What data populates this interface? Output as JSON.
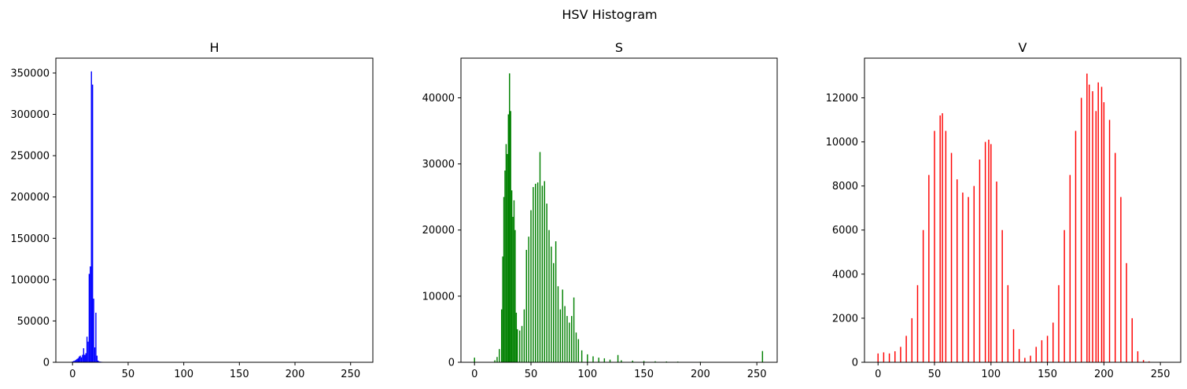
{
  "figure": {
    "suptitle": "HSV Histogram"
  },
  "chart_data": [
    {
      "type": "bar",
      "title": "H",
      "color": "#0000ff",
      "xlim": [
        -15,
        270
      ],
      "ylim": [
        0,
        368000
      ],
      "xticks": [
        0,
        50,
        100,
        150,
        200,
        250
      ],
      "yticks": [
        0,
        50000,
        100000,
        150000,
        200000,
        250000,
        300000,
        350000
      ],
      "x": [
        0,
        1,
        2,
        3,
        4,
        5,
        6,
        7,
        8,
        9,
        10,
        11,
        12,
        13,
        14,
        15,
        16,
        17,
        18,
        19,
        20,
        21,
        22,
        23,
        24,
        25,
        26,
        27,
        28,
        29,
        30,
        31,
        32,
        33,
        34,
        35,
        36,
        37,
        38,
        39,
        40
      ],
      "values": [
        1000,
        1500,
        2000,
        3000,
        4000,
        5000,
        7000,
        8000,
        6000,
        9000,
        17000,
        9000,
        11000,
        31000,
        25000,
        107000,
        116000,
        352000,
        336000,
        77000,
        18000,
        60000,
        8000,
        2000,
        1000,
        800,
        600,
        500,
        400,
        300,
        250,
        200,
        150,
        150,
        100,
        100,
        100,
        80,
        80,
        60,
        60
      ]
    },
    {
      "type": "bar",
      "title": "S",
      "color": "#008000",
      "xlim": [
        -12,
        268
      ],
      "ylim": [
        0,
        46000
      ],
      "xticks": [
        0,
        50,
        100,
        150,
        200,
        250
      ],
      "yticks": [
        0,
        10000,
        20000,
        30000,
        40000
      ],
      "x": [
        0,
        18,
        20,
        22,
        24,
        25,
        26,
        27,
        28,
        29,
        30,
        31,
        32,
        33,
        34,
        35,
        36,
        37,
        38,
        40,
        42,
        44,
        46,
        48,
        50,
        52,
        54,
        56,
        58,
        60,
        62,
        64,
        66,
        68,
        70,
        72,
        74,
        76,
        78,
        80,
        82,
        84,
        86,
        88,
        90,
        92,
        95,
        100,
        105,
        110,
        115,
        120,
        127,
        130,
        140,
        150,
        160,
        170,
        180,
        200,
        210,
        255
      ],
      "values": [
        700,
        300,
        800,
        2000,
        8000,
        16000,
        25000,
        29000,
        33000,
        31500,
        37500,
        43700,
        38000,
        26000,
        22000,
        24500,
        20000,
        7500,
        5000,
        4800,
        5500,
        8000,
        17000,
        19000,
        23000,
        26500,
        27000,
        27200,
        31800,
        26700,
        27400,
        24000,
        20000,
        17500,
        15000,
        18300,
        11500,
        8000,
        11000,
        8500,
        7000,
        6000,
        7000,
        9800,
        4500,
        3500,
        1800,
        1200,
        900,
        700,
        600,
        400,
        1100,
        300,
        250,
        200,
        150,
        120,
        100,
        80,
        60,
        1700
      ]
    },
    {
      "type": "bar",
      "title": "V",
      "color": "#ff0000",
      "xlim": [
        -12,
        268
      ],
      "ylim": [
        0,
        13800
      ],
      "xticks": [
        0,
        50,
        100,
        150,
        200,
        250
      ],
      "yticks": [
        0,
        2000,
        4000,
        6000,
        8000,
        10000,
        12000
      ],
      "x": [
        0,
        5,
        10,
        15,
        20,
        25,
        30,
        35,
        40,
        45,
        50,
        55,
        57,
        60,
        65,
        70,
        75,
        80,
        85,
        90,
        95,
        98,
        100,
        105,
        110,
        115,
        120,
        125,
        130,
        135,
        140,
        145,
        150,
        155,
        160,
        165,
        170,
        175,
        180,
        185,
        187,
        190,
        193,
        195,
        198,
        200,
        205,
        210,
        215,
        220,
        225,
        230,
        235,
        240,
        245,
        250
      ],
      "values": [
        400,
        450,
        400,
        500,
        700,
        1200,
        2000,
        3500,
        6000,
        8500,
        10500,
        11200,
        11300,
        10500,
        9500,
        8300,
        7700,
        7500,
        8000,
        9200,
        10000,
        10100,
        9900,
        8200,
        6000,
        3500,
        1500,
        600,
        200,
        300,
        700,
        1000,
        1200,
        1800,
        3500,
        6000,
        8500,
        10500,
        12000,
        13100,
        12600,
        12300,
        11400,
        12700,
        12500,
        11800,
        11000,
        9500,
        7500,
        4500,
        2000,
        500,
        100,
        40,
        10,
        0
      ]
    }
  ]
}
